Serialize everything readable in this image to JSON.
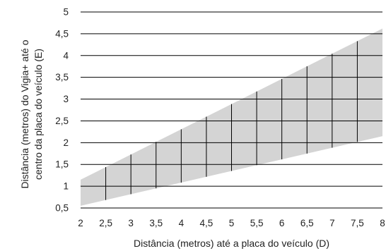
{
  "chart_data": {
    "type": "area",
    "title": "",
    "xlabel": "Distância (metros) até a placa do veículo (D)",
    "ylabel": [
      "Distância (metros) do Vigia+ até o",
      "centro da placa do veículo (E)"
    ],
    "xlim": [
      2,
      8
    ],
    "ylim": [
      0.5,
      5
    ],
    "x_ticks": [
      "2",
      "2,5",
      "3",
      "3,5",
      "4",
      "4,5",
      "5",
      "5,5",
      "6",
      "6,5",
      "7",
      "7,5",
      "8"
    ],
    "y_ticks": [
      "0,5",
      "1",
      "1,5",
      "2",
      "2,5",
      "3",
      "3,5",
      "4",
      "4,5",
      "5"
    ],
    "grid": true,
    "legend": "none",
    "fill_color": "#d4d4d4",
    "line_color": "#000000",
    "band": {
      "x": [
        2,
        8
      ],
      "upper": [
        1.15,
        4.62
      ],
      "lower": [
        0.55,
        2.15
      ]
    }
  }
}
